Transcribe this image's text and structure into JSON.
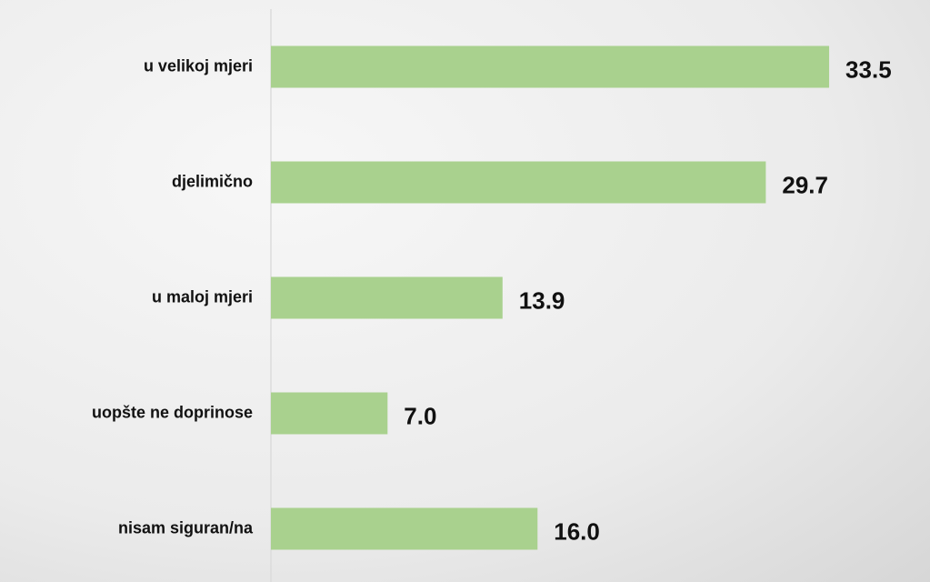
{
  "chart_data": {
    "type": "bar",
    "orientation": "horizontal",
    "categories": [
      "u velikoj mjeri",
      "djelimično",
      "u maloj mjeri",
      "uopšte ne doprinose",
      "nisam siguran/na"
    ],
    "values": [
      33.5,
      29.7,
      13.9,
      7.0,
      16.0
    ],
    "value_labels": [
      "33.5",
      "29.7",
      "13.9",
      "7.0",
      "16.0"
    ],
    "color": "#a9d18e"
  }
}
